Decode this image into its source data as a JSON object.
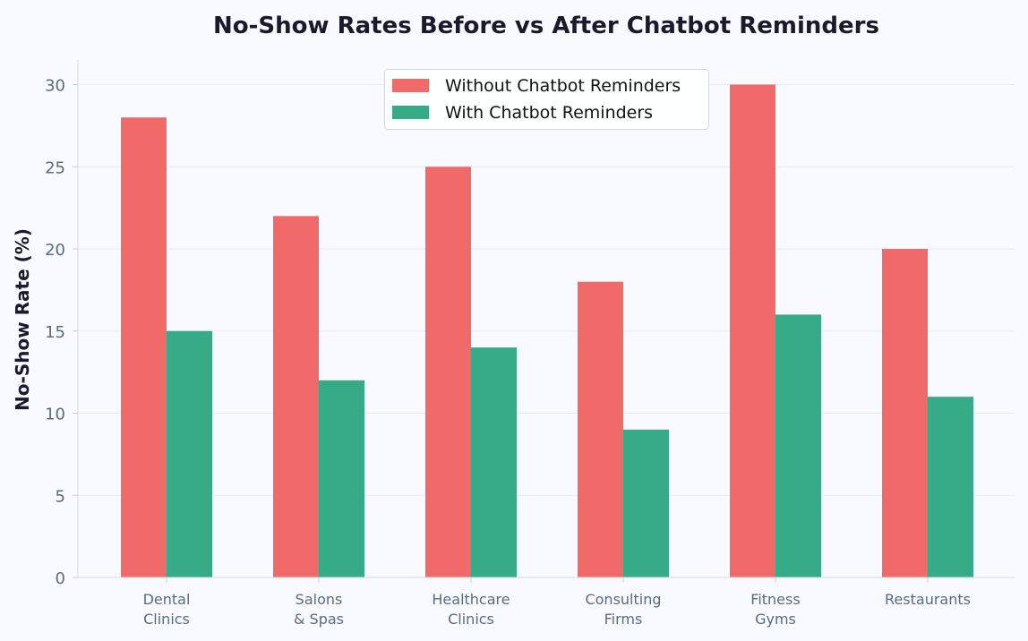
{
  "chart_data": {
    "type": "bar",
    "title": "No-Show Rates Before vs After Chatbot Reminders",
    "ylabel": "No-Show Rate (%)",
    "xlabel": "",
    "categories": [
      [
        "Dental",
        "Clinics"
      ],
      [
        "Salons",
        "& Spas"
      ],
      [
        "Healthcare",
        "Clinics"
      ],
      [
        "Consulting",
        "Firms"
      ],
      [
        "Fitness",
        "Gyms"
      ],
      [
        "Restaurants"
      ]
    ],
    "series": [
      {
        "name": "Without Chatbot Reminders",
        "color": "#f06a6a",
        "values": [
          28,
          22,
          25,
          18,
          30,
          20
        ]
      },
      {
        "name": "With Chatbot Reminders",
        "color": "#37aa86",
        "values": [
          15,
          12,
          14,
          9,
          16,
          11
        ]
      }
    ],
    "ylim": [
      0,
      31.5
    ],
    "yticks": [
      0,
      5,
      10,
      15,
      20,
      25,
      30
    ],
    "grid": "horizontal",
    "legend_position": "top-center"
  }
}
